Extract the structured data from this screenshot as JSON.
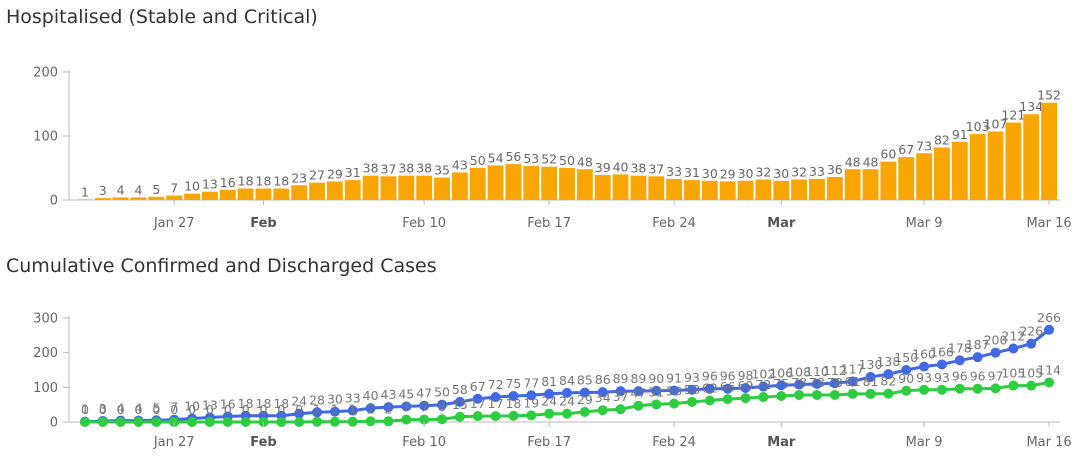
{
  "charts": {
    "hospitalised_title": "Hospitalised (Stable and Critical)",
    "cumulative_title": "Cumulative Confirmed and Discharged Cases"
  },
  "colors": {
    "bar": "#F9A602",
    "confirmed": "#4169E1",
    "discharged": "#2ECC40",
    "axis": "#bbbbbb"
  },
  "chart_data": [
    {
      "type": "bar",
      "title": "Hospitalised (Stable and Critical)",
      "x": [
        "Jan 22",
        "Jan 23",
        "Jan 24",
        "Jan 25",
        "Jan 26",
        "Jan 27",
        "Jan 28",
        "Jan 29",
        "Jan 30",
        "Jan 31",
        "Feb 1",
        "Feb 2",
        "Feb 3",
        "Feb 4",
        "Feb 5",
        "Feb 6",
        "Feb 7",
        "Feb 8",
        "Feb 9",
        "Feb 10",
        "Feb 11",
        "Feb 12",
        "Feb 13",
        "Feb 14",
        "Feb 15",
        "Feb 16",
        "Feb 17",
        "Feb 18",
        "Feb 19",
        "Feb 20",
        "Feb 21",
        "Feb 22",
        "Feb 23",
        "Feb 24",
        "Feb 25",
        "Feb 26",
        "Feb 27",
        "Feb 28",
        "Feb 29",
        "Mar 1",
        "Mar 2",
        "Mar 3",
        "Mar 4",
        "Mar 5",
        "Mar 6",
        "Mar 7",
        "Mar 8",
        "Mar 9",
        "Mar 10",
        "Mar 11",
        "Mar 12",
        "Mar 13",
        "Mar 14",
        "Mar 15",
        "Mar 16"
      ],
      "values": [
        1,
        3,
        4,
        4,
        5,
        7,
        10,
        13,
        16,
        18,
        18,
        18,
        23,
        27,
        29,
        31,
        38,
        37,
        38,
        38,
        35,
        43,
        50,
        54,
        56,
        53,
        52,
        50,
        48,
        39,
        40,
        38,
        37,
        33,
        31,
        30,
        29,
        30,
        32,
        30,
        32,
        33,
        36,
        48,
        48,
        60,
        67,
        73,
        82,
        91,
        103,
        107,
        121,
        134,
        152
      ],
      "ylim": [
        0,
        200
      ],
      "yticks": [
        "0",
        "100",
        "200"
      ],
      "xticks": [
        {
          "label": "Jan 27",
          "index": 5,
          "bold": false
        },
        {
          "label": "Feb",
          "index": 10,
          "bold": true
        },
        {
          "label": "Feb 10",
          "index": 19,
          "bold": false
        },
        {
          "label": "Feb 17",
          "index": 26,
          "bold": false
        },
        {
          "label": "Feb 24",
          "index": 33,
          "bold": false
        },
        {
          "label": "Mar",
          "index": 39,
          "bold": true
        },
        {
          "label": "Mar 9",
          "index": 47,
          "bold": false
        },
        {
          "label": "Mar 16",
          "index": 54,
          "bold": false
        }
      ]
    },
    {
      "type": "line",
      "title": "Cumulative Confirmed and Discharged Cases",
      "ylim": [
        0,
        300
      ],
      "yticks": [
        "0",
        "100",
        "200",
        "300"
      ],
      "xticks": [
        {
          "label": "Jan 27",
          "index": 5,
          "bold": false
        },
        {
          "label": "Feb",
          "index": 10,
          "bold": true
        },
        {
          "label": "Feb 10",
          "index": 19,
          "bold": false
        },
        {
          "label": "Feb 17",
          "index": 26,
          "bold": false
        },
        {
          "label": "Feb 24",
          "index": 33,
          "bold": false
        },
        {
          "label": "Mar",
          "index": 39,
          "bold": true
        },
        {
          "label": "Mar 9",
          "index": 47,
          "bold": false
        },
        {
          "label": "Mar 16",
          "index": 54,
          "bold": false
        }
      ],
      "series": [
        {
          "name": "Confirmed",
          "values": [
            1,
            3,
            4,
            4,
            5,
            7,
            10,
            13,
            16,
            18,
            18,
            18,
            24,
            28,
            30,
            33,
            40,
            43,
            45,
            47,
            50,
            58,
            67,
            72,
            75,
            77,
            81,
            84,
            85,
            86,
            89,
            89,
            90,
            91,
            93,
            96,
            96,
            98,
            102,
            106,
            108,
            110,
            112,
            117,
            130,
            138,
            150,
            160,
            166,
            178,
            187,
            200,
            212,
            226,
            266
          ]
        },
        {
          "name": "Discharged",
          "values": [
            0,
            0,
            0,
            0,
            0,
            0,
            0,
            0,
            0,
            0,
            0,
            0,
            0,
            1,
            1,
            1,
            2,
            2,
            7,
            7,
            8,
            15,
            17,
            17,
            18,
            19,
            24,
            24,
            29,
            34,
            37,
            47,
            51,
            53,
            58,
            62,
            66,
            69,
            72,
            75,
            78,
            78,
            78,
            81,
            81,
            82,
            90,
            93,
            93,
            96,
            96,
            97,
            105,
            105,
            114
          ]
        }
      ]
    }
  ]
}
